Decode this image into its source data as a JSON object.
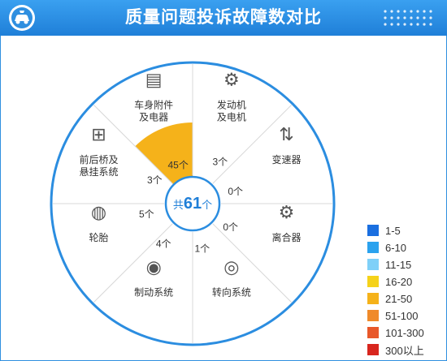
{
  "header": {
    "title": "质量问题投诉故障数对比",
    "logo_icon": "car-service-icon",
    "accent_color": "#1f7fd8"
  },
  "chart_data": {
    "type": "pie",
    "title": "质量问题投诉故障数对比",
    "center_label": {
      "prefix": "共",
      "value": 61,
      "suffix": "个"
    },
    "categories": [
      "发动机\n及电机",
      "变速器",
      "离合器",
      "转向系统",
      "制动系统",
      "轮胎",
      "前后桥及\n悬挂系统",
      "车身附件\n及电器"
    ],
    "values": [
      3,
      0,
      0,
      1,
      4,
      5,
      3,
      45
    ],
    "value_labels": [
      "3个",
      "0个",
      "0个",
      "1个",
      "4个",
      "5个",
      "3个",
      "45个"
    ],
    "icons": [
      "engine-icon",
      "gear-shift-icon",
      "clutch-pedal-icon",
      "steering-wheel-icon",
      "brake-disc-icon",
      "tire-icon",
      "axle-suspension-icon",
      "car-battery-icon"
    ],
    "legend": {
      "placement": "bottom-right",
      "items": [
        {
          "label": "1-5",
          "color": "#1a6fe0"
        },
        {
          "label": "6-10",
          "color": "#2ba2ee"
        },
        {
          "label": "11-15",
          "color": "#7fd0f8"
        },
        {
          "label": "16-20",
          "color": "#f5d21a"
        },
        {
          "label": "21-50",
          "color": "#f5b21a"
        },
        {
          "label": "51-100",
          "color": "#f08a2a"
        },
        {
          "label": "101-300",
          "color": "#e8582a"
        },
        {
          "label": "300以上",
          "color": "#d8261e"
        }
      ]
    },
    "highlight_color": "#f5b21a",
    "ring_color": "#2b8de0"
  }
}
